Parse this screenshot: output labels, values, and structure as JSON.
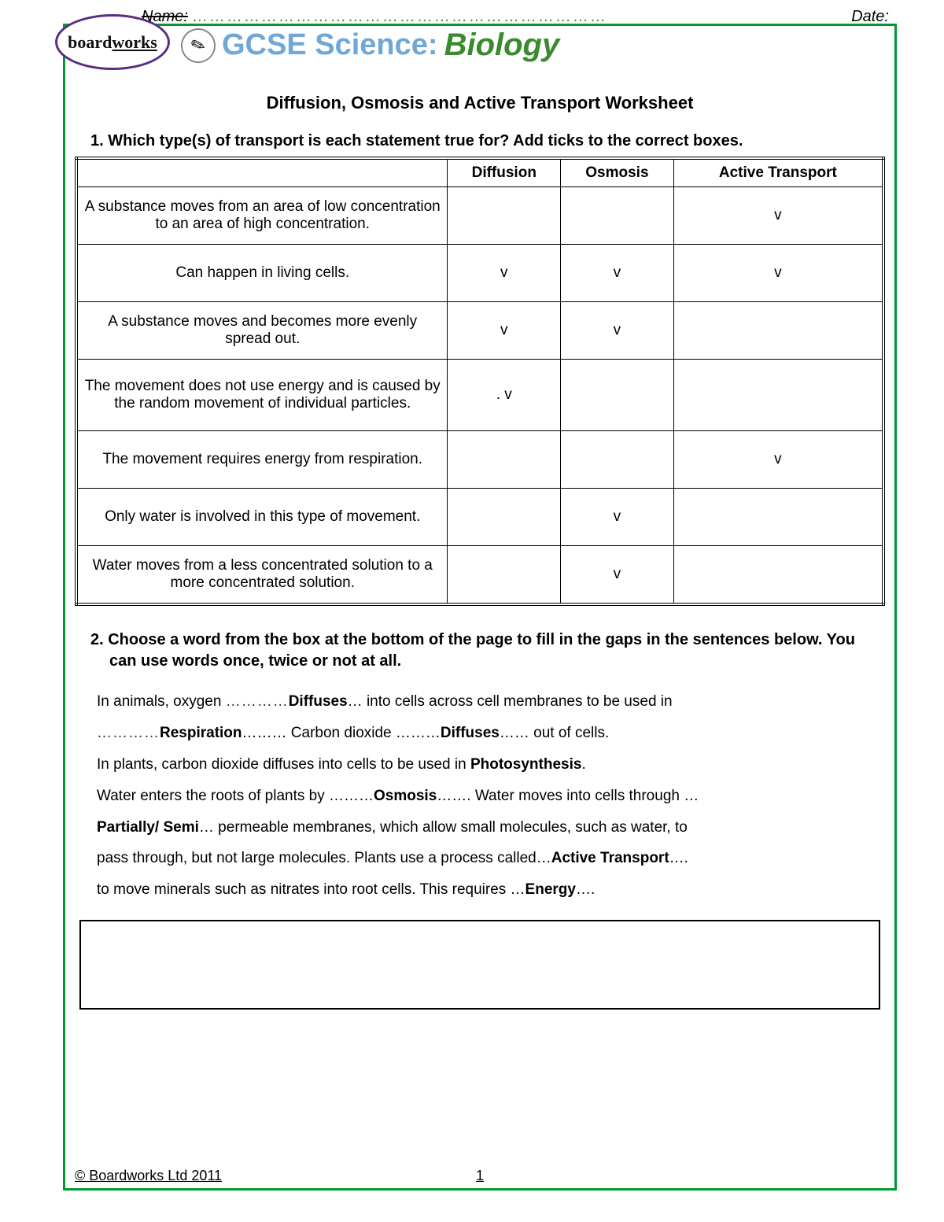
{
  "header": {
    "name_label": "Name:",
    "name_dots": "………………………………………………………………",
    "date_label": "Date:"
  },
  "logo": {
    "text_a": "board",
    "text_b": "works"
  },
  "banner": {
    "gcse": "GCSE Science:",
    "biology": "Biology",
    "pencil": "✎"
  },
  "worksheet_title": "Diffusion, Osmosis and Active Transport Worksheet",
  "q1": {
    "prompt": "1.  Which type(s) of transport is each statement true for? Add ticks to the correct boxes.",
    "columns": [
      "",
      "Diffusion",
      "Osmosis",
      "Active Transport"
    ],
    "rows": [
      {
        "statement": "A substance moves from an area of low concentration to an area of high concentration.",
        "ticks": [
          "",
          "",
          "v"
        ]
      },
      {
        "statement": "Can happen in living cells.",
        "ticks": [
          "v",
          "v",
          "v"
        ]
      },
      {
        "statement": "A substance moves and becomes more evenly spread out.",
        "ticks": [
          "v",
          "v",
          ""
        ]
      },
      {
        "statement": "The movement does not use energy and is caused by the random movement of individual particles.",
        "ticks": [
          ". v",
          "",
          ""
        ]
      },
      {
        "statement": "The movement requires energy from respiration.",
        "ticks": [
          "",
          "",
          "v"
        ]
      },
      {
        "statement": "Only water is involved in this type of movement.",
        "ticks": [
          "",
          "v",
          ""
        ]
      },
      {
        "statement": "Water moves from a less concentrated solution to a more concentrated solution.",
        "ticks": [
          "",
          "v",
          ""
        ]
      }
    ]
  },
  "q2": {
    "prompt": "2.  Choose a word from the box at the bottom of the page to fill in the gaps in the sentences below. You can use words once, twice or not at all.",
    "p1a": "In animals, oxygen ",
    "d1": "…………",
    "w1": "Diffuses",
    "p1b": "… into cells across cell membranes to be used in",
    "d2": "…………",
    "w2": "Respiration",
    "p2a": "……… Carbon dioxide ………",
    "w3": "Diffuses",
    "p2b": "…… out of cells.",
    "p3a": "In plants, carbon dioxide diffuses into cells to be used in ",
    "w4": "Photosynthesis",
    "p3b": ".",
    "p4a": "Water enters the roots of plants by ………",
    "w5": "Osmosis",
    "p4b": "……. Water moves into cells through …",
    "w6": "Partially/ Semi",
    "p5a": "… permeable membranes, which allow small molecules, such as water, to",
    "p5b": "pass through, but not large molecules.  Plants use a process called…",
    "w7": "Active Transport",
    "p5c": "….",
    "p6a": "to move minerals such as nitrates into root cells. This requires …",
    "w8": "Energy",
    "p6b": "…."
  },
  "footer": {
    "copyright": "© Boardworks Ltd 2011",
    "page": "1"
  }
}
